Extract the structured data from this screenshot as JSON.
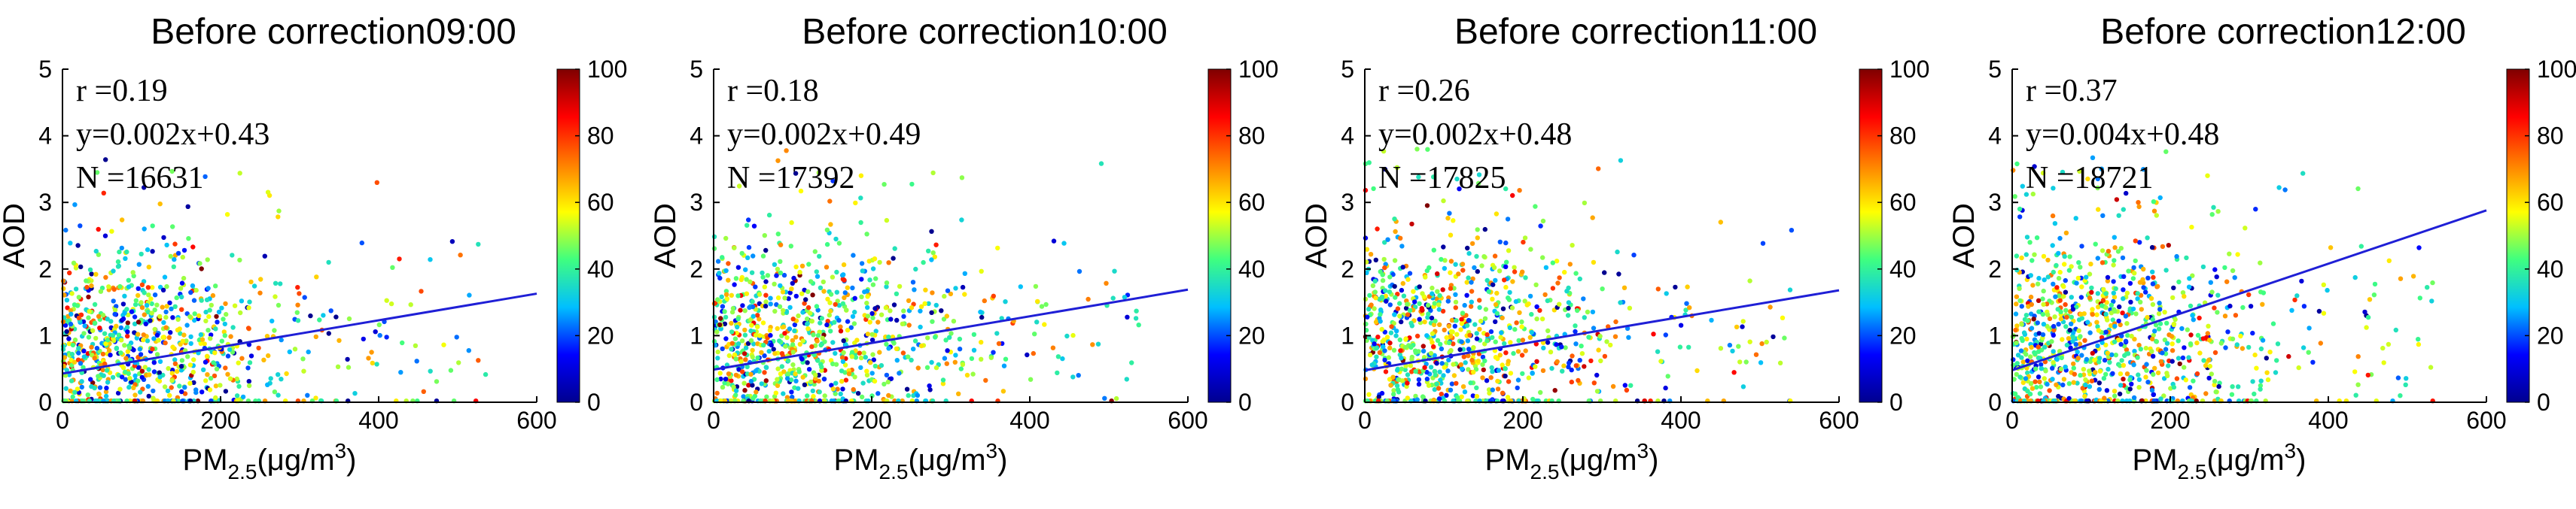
{
  "figure": {
    "colorbar_ticks": [
      "0",
      "20",
      "40",
      "60",
      "80",
      "100"
    ],
    "colormap": [
      "#00008f",
      "#0000ff",
      "#00bfff",
      "#3fff7f",
      "#ffff00",
      "#ff7f00",
      "#ff0000",
      "#7f0000"
    ]
  },
  "chart_data": [
    {
      "type": "scatter",
      "title": "Before correction09:00",
      "xlabel": "PM",
      "xlabel_sub": "2.5",
      "xlabel_unit": "(μg/m",
      "xlabel_sup": "3",
      "xlabel_close": ")",
      "ylabel": "AOD",
      "xlim": [
        0,
        600
      ],
      "ylim": [
        0,
        5
      ],
      "xticks": [
        "0",
        "200",
        "400",
        "600"
      ],
      "yticks": [
        "0",
        "1",
        "2",
        "3",
        "4",
        "5"
      ],
      "stats": {
        "r": "r =0.19",
        "eq": "y=0.002x+0.43",
        "n": "N =16631"
      },
      "fit": {
        "slope": 0.002,
        "intercept": 0.43
      },
      "colorbar_range": [
        0,
        100
      ],
      "point_cloud": {
        "x_center": 90,
        "x_spread": 120,
        "y_center": 0.85,
        "y_spread": 0.65,
        "count": 900
      }
    },
    {
      "type": "scatter",
      "title": "Before correction10:00",
      "xlabel": "PM",
      "xlabel_sub": "2.5",
      "xlabel_unit": "(μg/m",
      "xlabel_sup": "3",
      "xlabel_close": ")",
      "ylabel": "AOD",
      "xlim": [
        0,
        600
      ],
      "ylim": [
        0,
        5
      ],
      "xticks": [
        "0",
        "200",
        "400",
        "600"
      ],
      "yticks": [
        "0",
        "1",
        "2",
        "3",
        "4",
        "5"
      ],
      "stats": {
        "r": "r =0.18",
        "eq": "y=0.002x+0.49",
        "n": "N =17392"
      },
      "fit": {
        "slope": 0.002,
        "intercept": 0.49
      },
      "colorbar_range": [
        0,
        100
      ],
      "point_cloud": {
        "x_center": 100,
        "x_spread": 140,
        "y_center": 0.85,
        "y_spread": 0.7,
        "count": 950
      }
    },
    {
      "type": "scatter",
      "title": "Before correction11:00",
      "xlabel": "PM",
      "xlabel_sub": "2.5",
      "xlabel_unit": "(μg/m",
      "xlabel_sup": "3",
      "xlabel_close": ")",
      "ylabel": "AOD",
      "xlim": [
        0,
        600
      ],
      "ylim": [
        0,
        5
      ],
      "xticks": [
        "0",
        "200",
        "400",
        "600"
      ],
      "yticks": [
        "0",
        "1",
        "2",
        "3",
        "4",
        "5"
      ],
      "stats": {
        "r": "r =0.26",
        "eq": "y=0.002x+0.48",
        "n": "N =17825"
      },
      "fit": {
        "slope": 0.002,
        "intercept": 0.48
      },
      "colorbar_range": [
        0,
        100
      ],
      "point_cloud": {
        "x_center": 100,
        "x_spread": 150,
        "y_center": 0.9,
        "y_spread": 0.75,
        "count": 950
      }
    },
    {
      "type": "scatter",
      "title": "Before correction12:00",
      "xlabel": "PM",
      "xlabel_sub": "2.5",
      "xlabel_unit": "(μg/m",
      "xlabel_sup": "3",
      "xlabel_close": ")",
      "ylabel": "AOD",
      "xlim": [
        0,
        600
      ],
      "ylim": [
        0,
        5
      ],
      "xticks": [
        "0",
        "200",
        "400",
        "600"
      ],
      "yticks": [
        "0",
        "1",
        "2",
        "3",
        "4",
        "5"
      ],
      "stats": {
        "r": "r =0.37",
        "eq": "y=0.004x+0.48",
        "n": "N =18721"
      },
      "fit": {
        "slope": 0.004,
        "intercept": 0.48
      },
      "colorbar_range": [
        0,
        100
      ],
      "point_cloud": {
        "x_center": 100,
        "x_spread": 140,
        "y_center": 0.95,
        "y_spread": 0.8,
        "count": 1000
      }
    }
  ]
}
